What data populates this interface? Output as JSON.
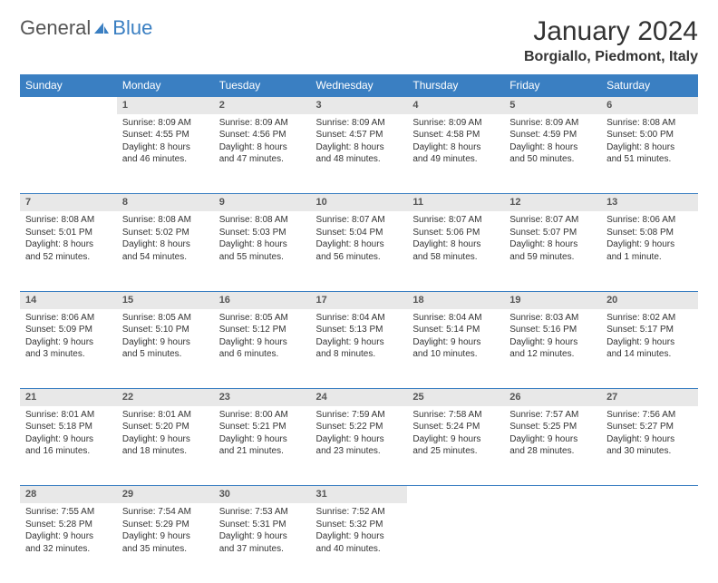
{
  "logo": {
    "part1": "General",
    "part2": "Blue"
  },
  "header": {
    "title": "January 2024",
    "location": "Borgiallo, Piedmont, Italy"
  },
  "colors": {
    "accent": "#3a7fc2",
    "header_bg": "#3a7fc2",
    "daynum_bg": "#e8e8e8",
    "text": "#333333"
  },
  "weekdays": [
    "Sunday",
    "Monday",
    "Tuesday",
    "Wednesday",
    "Thursday",
    "Friday",
    "Saturday"
  ],
  "weeks": [
    {
      "nums": [
        "",
        "1",
        "2",
        "3",
        "4",
        "5",
        "6"
      ],
      "cells": [
        null,
        {
          "sr": "Sunrise: 8:09 AM",
          "ss": "Sunset: 4:55 PM",
          "d1": "Daylight: 8 hours",
          "d2": "and 46 minutes."
        },
        {
          "sr": "Sunrise: 8:09 AM",
          "ss": "Sunset: 4:56 PM",
          "d1": "Daylight: 8 hours",
          "d2": "and 47 minutes."
        },
        {
          "sr": "Sunrise: 8:09 AM",
          "ss": "Sunset: 4:57 PM",
          "d1": "Daylight: 8 hours",
          "d2": "and 48 minutes."
        },
        {
          "sr": "Sunrise: 8:09 AM",
          "ss": "Sunset: 4:58 PM",
          "d1": "Daylight: 8 hours",
          "d2": "and 49 minutes."
        },
        {
          "sr": "Sunrise: 8:09 AM",
          "ss": "Sunset: 4:59 PM",
          "d1": "Daylight: 8 hours",
          "d2": "and 50 minutes."
        },
        {
          "sr": "Sunrise: 8:08 AM",
          "ss": "Sunset: 5:00 PM",
          "d1": "Daylight: 8 hours",
          "d2": "and 51 minutes."
        }
      ]
    },
    {
      "nums": [
        "7",
        "8",
        "9",
        "10",
        "11",
        "12",
        "13"
      ],
      "cells": [
        {
          "sr": "Sunrise: 8:08 AM",
          "ss": "Sunset: 5:01 PM",
          "d1": "Daylight: 8 hours",
          "d2": "and 52 minutes."
        },
        {
          "sr": "Sunrise: 8:08 AM",
          "ss": "Sunset: 5:02 PM",
          "d1": "Daylight: 8 hours",
          "d2": "and 54 minutes."
        },
        {
          "sr": "Sunrise: 8:08 AM",
          "ss": "Sunset: 5:03 PM",
          "d1": "Daylight: 8 hours",
          "d2": "and 55 minutes."
        },
        {
          "sr": "Sunrise: 8:07 AM",
          "ss": "Sunset: 5:04 PM",
          "d1": "Daylight: 8 hours",
          "d2": "and 56 minutes."
        },
        {
          "sr": "Sunrise: 8:07 AM",
          "ss": "Sunset: 5:06 PM",
          "d1": "Daylight: 8 hours",
          "d2": "and 58 minutes."
        },
        {
          "sr": "Sunrise: 8:07 AM",
          "ss": "Sunset: 5:07 PM",
          "d1": "Daylight: 8 hours",
          "d2": "and 59 minutes."
        },
        {
          "sr": "Sunrise: 8:06 AM",
          "ss": "Sunset: 5:08 PM",
          "d1": "Daylight: 9 hours",
          "d2": "and 1 minute."
        }
      ]
    },
    {
      "nums": [
        "14",
        "15",
        "16",
        "17",
        "18",
        "19",
        "20"
      ],
      "cells": [
        {
          "sr": "Sunrise: 8:06 AM",
          "ss": "Sunset: 5:09 PM",
          "d1": "Daylight: 9 hours",
          "d2": "and 3 minutes."
        },
        {
          "sr": "Sunrise: 8:05 AM",
          "ss": "Sunset: 5:10 PM",
          "d1": "Daylight: 9 hours",
          "d2": "and 5 minutes."
        },
        {
          "sr": "Sunrise: 8:05 AM",
          "ss": "Sunset: 5:12 PM",
          "d1": "Daylight: 9 hours",
          "d2": "and 6 minutes."
        },
        {
          "sr": "Sunrise: 8:04 AM",
          "ss": "Sunset: 5:13 PM",
          "d1": "Daylight: 9 hours",
          "d2": "and 8 minutes."
        },
        {
          "sr": "Sunrise: 8:04 AM",
          "ss": "Sunset: 5:14 PM",
          "d1": "Daylight: 9 hours",
          "d2": "and 10 minutes."
        },
        {
          "sr": "Sunrise: 8:03 AM",
          "ss": "Sunset: 5:16 PM",
          "d1": "Daylight: 9 hours",
          "d2": "and 12 minutes."
        },
        {
          "sr": "Sunrise: 8:02 AM",
          "ss": "Sunset: 5:17 PM",
          "d1": "Daylight: 9 hours",
          "d2": "and 14 minutes."
        }
      ]
    },
    {
      "nums": [
        "21",
        "22",
        "23",
        "24",
        "25",
        "26",
        "27"
      ],
      "cells": [
        {
          "sr": "Sunrise: 8:01 AM",
          "ss": "Sunset: 5:18 PM",
          "d1": "Daylight: 9 hours",
          "d2": "and 16 minutes."
        },
        {
          "sr": "Sunrise: 8:01 AM",
          "ss": "Sunset: 5:20 PM",
          "d1": "Daylight: 9 hours",
          "d2": "and 18 minutes."
        },
        {
          "sr": "Sunrise: 8:00 AM",
          "ss": "Sunset: 5:21 PM",
          "d1": "Daylight: 9 hours",
          "d2": "and 21 minutes."
        },
        {
          "sr": "Sunrise: 7:59 AM",
          "ss": "Sunset: 5:22 PM",
          "d1": "Daylight: 9 hours",
          "d2": "and 23 minutes."
        },
        {
          "sr": "Sunrise: 7:58 AM",
          "ss": "Sunset: 5:24 PM",
          "d1": "Daylight: 9 hours",
          "d2": "and 25 minutes."
        },
        {
          "sr": "Sunrise: 7:57 AM",
          "ss": "Sunset: 5:25 PM",
          "d1": "Daylight: 9 hours",
          "d2": "and 28 minutes."
        },
        {
          "sr": "Sunrise: 7:56 AM",
          "ss": "Sunset: 5:27 PM",
          "d1": "Daylight: 9 hours",
          "d2": "and 30 minutes."
        }
      ]
    },
    {
      "nums": [
        "28",
        "29",
        "30",
        "31",
        "",
        "",
        ""
      ],
      "cells": [
        {
          "sr": "Sunrise: 7:55 AM",
          "ss": "Sunset: 5:28 PM",
          "d1": "Daylight: 9 hours",
          "d2": "and 32 minutes."
        },
        {
          "sr": "Sunrise: 7:54 AM",
          "ss": "Sunset: 5:29 PM",
          "d1": "Daylight: 9 hours",
          "d2": "and 35 minutes."
        },
        {
          "sr": "Sunrise: 7:53 AM",
          "ss": "Sunset: 5:31 PM",
          "d1": "Daylight: 9 hours",
          "d2": "and 37 minutes."
        },
        {
          "sr": "Sunrise: 7:52 AM",
          "ss": "Sunset: 5:32 PM",
          "d1": "Daylight: 9 hours",
          "d2": "and 40 minutes."
        },
        null,
        null,
        null
      ]
    }
  ]
}
